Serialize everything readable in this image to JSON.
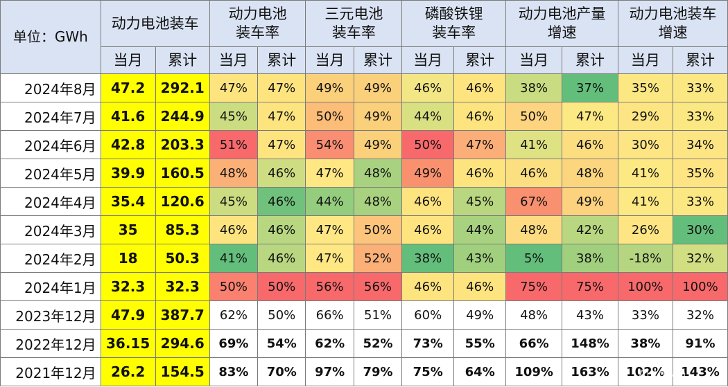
{
  "header": {
    "unit_label": "单位：GWh",
    "groups": [
      {
        "lines": [
          "动力电池装车"
        ]
      },
      {
        "lines": [
          "动力电池",
          "装车率"
        ]
      },
      {
        "lines": [
          "三元电池",
          "装车率"
        ]
      },
      {
        "lines": [
          "磷酸铁锂",
          "装车率"
        ]
      },
      {
        "lines": [
          "动力电池产量",
          "增速"
        ]
      },
      {
        "lines": [
          "动力电池装车",
          "增速"
        ]
      }
    ],
    "sub": [
      "当月",
      "累计"
    ]
  },
  "rows": [
    {
      "period": "2024年8月",
      "install": [
        "47.2",
        "292.1"
      ],
      "values": [
        "47%",
        "47%",
        "49%",
        "49%",
        "46%",
        "46%",
        "38%",
        "37%",
        "35%",
        "33%"
      ],
      "colors": [
        "#fde47f",
        "#fde47f",
        "#fbd07a",
        "#fbd07a",
        "#f3e684",
        "#fde47f",
        "#c9dc81",
        "#63be7b",
        "#fce883",
        "#fce883"
      ]
    },
    {
      "period": "2024年7月",
      "install": [
        "41.6",
        "244.9"
      ],
      "values": [
        "45%",
        "47%",
        "50%",
        "49%",
        "44%",
        "46%",
        "50%",
        "47%",
        "29%",
        "33%"
      ],
      "colors": [
        "#cbdc81",
        "#fde47f",
        "#fcbd78",
        "#fbd07a",
        "#d9e082",
        "#fde47f",
        "#fdd47f",
        "#fde983",
        "#fee583",
        "#fce883"
      ]
    },
    {
      "period": "2024年6月",
      "install": [
        "42.8",
        "203.3"
      ],
      "values": [
        "51%",
        "47%",
        "54%",
        "49%",
        "50%",
        "47%",
        "41%",
        "46%",
        "30%",
        "34%"
      ],
      "colors": [
        "#f8696b",
        "#fde47f",
        "#fa8e72",
        "#fbd07a",
        "#f8696b",
        "#fbae78",
        "#dfe283",
        "#fcde81",
        "#fee583",
        "#fee583"
      ]
    },
    {
      "period": "2024年5月",
      "install": [
        "39.9",
        "160.5"
      ],
      "values": [
        "48%",
        "46%",
        "47%",
        "48%",
        "49%",
        "46%",
        "46%",
        "48%",
        "41%",
        "35%"
      ],
      "colors": [
        "#fbb078",
        "#cedd82",
        "#ffe883",
        "#a8d27f",
        "#f9916f",
        "#fde47f",
        "#fcdf81",
        "#fcd57f",
        "#fde983",
        "#fee483"
      ]
    },
    {
      "period": "2024年4月",
      "install": [
        "35.4",
        "120.6"
      ],
      "values": [
        "45%",
        "46%",
        "44%",
        "48%",
        "46%",
        "45%",
        "67%",
        "49%",
        "41%",
        "33%"
      ],
      "colors": [
        "#cbdc81",
        "#70c17c",
        "#95cd7e",
        "#a8d27f",
        "#fde47f",
        "#b9d780",
        "#f9906f",
        "#fcd27f",
        "#fde983",
        "#fce883"
      ]
    },
    {
      "period": "2024年3月",
      "install": [
        "35",
        "85.3"
      ],
      "values": [
        "46%",
        "46%",
        "47%",
        "50%",
        "46%",
        "44%",
        "48%",
        "42%",
        "26%",
        "30%"
      ],
      "colors": [
        "#fde47f",
        "#b8d780",
        "#ffe883",
        "#fcc57b",
        "#fde47f",
        "#a8d27f",
        "#fddc81",
        "#b8d780",
        "#fee583",
        "#63be7b"
      ]
    },
    {
      "period": "2024年2月",
      "install": [
        "18",
        "50.3"
      ],
      "values": [
        "41%",
        "46%",
        "47%",
        "52%",
        "38%",
        "43%",
        "5%",
        "38%",
        "-18%",
        "32%"
      ],
      "colors": [
        "#63be7b",
        "#b8d780",
        "#ffe883",
        "#fbb078",
        "#63be7b",
        "#a0d07e",
        "#63be7b",
        "#a0d07e",
        "#b5d580",
        "#d1de82"
      ]
    },
    {
      "period": "2024年1月",
      "install": [
        "32.3",
        "32.3"
      ],
      "values": [
        "50%",
        "50%",
        "56%",
        "56%",
        "46%",
        "46%",
        "75%",
        "75%",
        "100%",
        "100%"
      ],
      "colors": [
        "#fa8070",
        "#f8696b",
        "#f8696b",
        "#f8696b",
        "#fde47f",
        "#fde47f",
        "#f8696b",
        "#f8696b",
        "#f8696b",
        "#f8696b"
      ]
    },
    {
      "period": "2023年12月",
      "install": [
        "47.9",
        "387.7"
      ],
      "values": [
        "62%",
        "50%",
        "66%",
        "51%",
        "60%",
        "49%",
        "48%",
        "43%",
        "33%",
        "32%"
      ],
      "colors": [
        "#ffffff",
        "#ffffff",
        "#ffffff",
        "#ffffff",
        "#ffffff",
        "#ffffff",
        "#ffffff",
        "#ffffff",
        "#ffffff",
        "#ffffff"
      ]
    },
    {
      "period": "2022年12月",
      "install": [
        "36.15",
        "294.6"
      ],
      "values": [
        "69%",
        "54%",
        "62%",
        "52%",
        "73%",
        "55%",
        "66%",
        "148%",
        "38%",
        "91%"
      ],
      "colors": [
        "#ffffff",
        "#ffffff",
        "#ffffff",
        "#ffffff",
        "#ffffff",
        "#ffffff",
        "#ffffff",
        "#ffffff",
        "#ffffff",
        "#ffffff"
      ],
      "bold": true
    },
    {
      "period": "2021年12月",
      "install": [
        "26.2",
        "154.5"
      ],
      "values": [
        "83%",
        "70%",
        "97%",
        "79%",
        "75%",
        "64%",
        "109%",
        "163%",
        "102%",
        "143%"
      ],
      "colors": [
        "#ffffff",
        "#ffffff",
        "#ffffff",
        "#ffffff",
        "#ffffff",
        "#ffffff",
        "#ffffff",
        "#ffffff",
        "#ffffff",
        "#ffffff"
      ],
      "bold": true
    }
  ]
}
